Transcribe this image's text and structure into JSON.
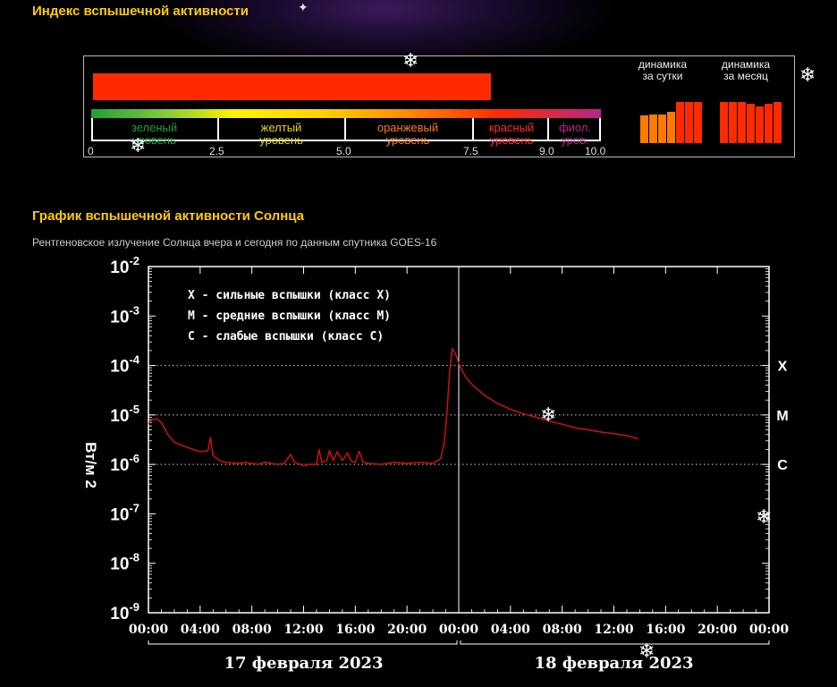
{
  "header": {
    "title": "Индекс вспышечной активности"
  },
  "flare_index": {
    "value": 7.8,
    "scale_max": 10.0,
    "bar_color": "#ff2a00",
    "levels": [
      {
        "label1": "зеленый",
        "label2": "уровень",
        "color": "#1ea03a"
      },
      {
        "label1": "желтый",
        "label2": "уровень",
        "color": "#e8d600"
      },
      {
        "label1": "оранжевый",
        "label2": "уровень",
        "color": "#ff7a1a"
      },
      {
        "label1": "красный",
        "label2": "уровень",
        "color": "#ff2a2a"
      },
      {
        "label1": "фиол.",
        "label2": "уров.",
        "color": "#b4288c"
      }
    ],
    "scale_labels": [
      "0",
      "2.5",
      "5.0",
      "7.5",
      "9.0",
      "10.0"
    ],
    "daily": {
      "label1": "динамика",
      "label2": "за сутки",
      "values": [
        5.8,
        6.0,
        6.0,
        6.5,
        8.6,
        8.6,
        8.6
      ]
    },
    "monthly": {
      "label1": "динамика",
      "label2": "за месяц",
      "values": [
        8.6,
        8.6,
        8.6,
        8.2,
        7.6,
        8.2,
        8.6
      ]
    }
  },
  "section": {
    "title": "График вспышечной активности Солнца",
    "description": "Рентгеновское излучение Солнца вчера и сегодня по данным спутника GOES-16"
  },
  "chart_data": {
    "type": "line",
    "ylabel": "Вт/м 2",
    "yscale": "log",
    "ylim": [
      1e-09,
      0.01
    ],
    "y_tick_exponents": [
      "-2",
      "-3",
      "-4",
      "-5",
      "-6",
      "-7",
      "-8",
      "-9"
    ],
    "y_tick_base": "10",
    "x_range_hours": [
      0,
      48
    ],
    "x_tick_labels": [
      "00:00",
      "04:00",
      "08:00",
      "12:00",
      "16:00",
      "20:00",
      "00:00",
      "04:00",
      "08:00",
      "12:00",
      "16:00",
      "20:00",
      "00:00"
    ],
    "date_labels": [
      "17 февраля 2023",
      "18 февраля 2023"
    ],
    "legend": [
      "X - сильные вспышки (класс X)",
      "M - средние вспышки (класс M)",
      "C - слабые вспышки (класс C)"
    ],
    "class_levels": [
      {
        "label": "X",
        "value": 0.0001
      },
      {
        "label": "M",
        "value": 1e-05
      },
      {
        "label": "C",
        "value": 1e-06
      }
    ],
    "series": [
      {
        "color": "#cc1010",
        "points": [
          [
            0,
            6.5e-06
          ],
          [
            0.3,
            8e-06
          ],
          [
            0.6,
            8.5e-06
          ],
          [
            1,
            7e-06
          ],
          [
            1.5,
            4e-06
          ],
          [
            2,
            2.8e-06
          ],
          [
            3,
            2.2e-06
          ],
          [
            4,
            1.8e-06
          ],
          [
            4.6,
            1.9e-06
          ],
          [
            4.8,
            3.5e-06
          ],
          [
            5,
            1.5e-06
          ],
          [
            5.5,
            1.2e-06
          ],
          [
            6,
            1.1e-06
          ],
          [
            7,
            1.05e-06
          ],
          [
            7.5,
            1.1e-06
          ],
          [
            8,
            1.05e-06
          ],
          [
            8.5,
            1e-06
          ],
          [
            9,
            1.1e-06
          ],
          [
            10,
            1e-06
          ],
          [
            10.5,
            1.05e-06
          ],
          [
            11,
            1.6e-06
          ],
          [
            11.3,
            1.1e-06
          ],
          [
            12,
            9.5e-07
          ],
          [
            12.5,
            1e-06
          ],
          [
            13,
            1e-06
          ],
          [
            13.2,
            2e-06
          ],
          [
            13.4,
            1.1e-06
          ],
          [
            13.8,
            1.2e-06
          ],
          [
            14,
            1.9e-06
          ],
          [
            14.3,
            1.2e-06
          ],
          [
            14.6,
            1.8e-06
          ],
          [
            15,
            1.2e-06
          ],
          [
            15.4,
            1.7e-06
          ],
          [
            15.7,
            1.15e-06
          ],
          [
            16,
            1.1e-06
          ],
          [
            16.3,
            1.85e-06
          ],
          [
            16.6,
            1.1e-06
          ],
          [
            17,
            1.05e-06
          ],
          [
            18,
            1e-06
          ],
          [
            19,
            1.1e-06
          ],
          [
            20,
            1.05e-06
          ],
          [
            21,
            1.1e-06
          ],
          [
            22,
            1.05e-06
          ],
          [
            22.6,
            1.3e-06
          ],
          [
            22.9,
            3e-06
          ],
          [
            23.1,
            1.2e-05
          ],
          [
            23.3,
            8e-05
          ],
          [
            23.5,
            0.00022
          ],
          [
            23.8,
            0.00016
          ],
          [
            24,
            0.00011
          ],
          [
            24.5,
            6e-05
          ],
          [
            25,
            4.2e-05
          ],
          [
            26,
            2.5e-05
          ],
          [
            27,
            1.7e-05
          ],
          [
            28,
            1.3e-05
          ],
          [
            29,
            1.05e-05
          ],
          [
            30,
            9e-06
          ],
          [
            31,
            7.5e-06
          ],
          [
            32,
            6.5e-06
          ],
          [
            33,
            5.5e-06
          ],
          [
            34,
            5e-06
          ],
          [
            35,
            4.5e-06
          ],
          [
            36,
            4.2e-06
          ],
          [
            37,
            3.8e-06
          ],
          [
            37.9,
            3.3e-06
          ]
        ]
      }
    ]
  }
}
